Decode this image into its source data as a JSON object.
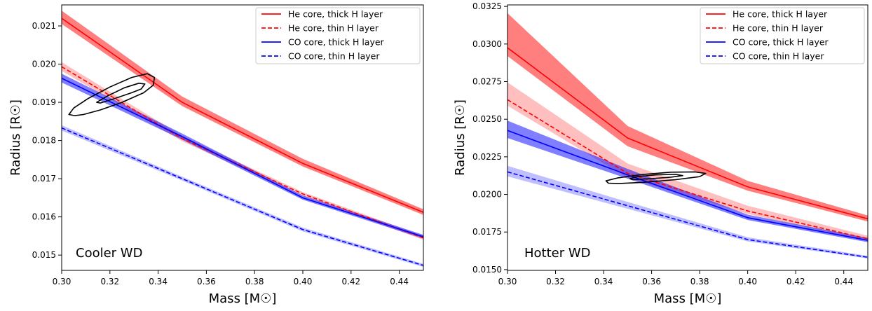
{
  "figure": {
    "background": "#ffffff"
  },
  "chart_data": [
    {
      "type": "line",
      "title": "",
      "annotation": "Cooler WD",
      "xlabel": "Mass [M☉]",
      "ylabel": "Radius [R☉]",
      "xlim": [
        0.3,
        0.45
      ],
      "ylim": [
        0.0146,
        0.02155
      ],
      "xticks": [
        0.3,
        0.32,
        0.34,
        0.36,
        0.38,
        0.4,
        0.42,
        0.44
      ],
      "xtick_labels": [
        "0.30",
        "0.32",
        "0.34",
        "0.36",
        "0.38",
        "0.40",
        "0.42",
        "0.44"
      ],
      "yticks": [
        0.015,
        0.016,
        0.017,
        0.018,
        0.019,
        0.02,
        0.021
      ],
      "ytick_labels": [
        "0.015",
        "0.016",
        "0.017",
        "0.018",
        "0.019",
        "0.020",
        "0.021"
      ],
      "grid": false,
      "legend": "top-right",
      "series": [
        {
          "name": "He core, thick H layer",
          "color": "#ff0000",
          "dash": "solid",
          "x": [
            0.3,
            0.35,
            0.4,
            0.45
          ],
          "y": [
            0.0212,
            0.019,
            0.0174,
            0.01612
          ],
          "band_upper": [
            0.0214,
            0.01915,
            0.01752,
            0.0162
          ],
          "band_lower": [
            0.02105,
            0.0189,
            0.01732,
            0.01605
          ],
          "band_opacity": 0.5
        },
        {
          "name": "He core, thin H layer",
          "color": "#ff0000",
          "dash": "dashed",
          "x": [
            0.3,
            0.35,
            0.4,
            0.45
          ],
          "y": [
            0.01993,
            0.01805,
            0.0166,
            0.01545
          ],
          "band_upper": [
            0.02005,
            0.01812,
            0.01665,
            0.0155
          ],
          "band_lower": [
            0.01982,
            0.01798,
            0.01655,
            0.0154
          ],
          "band_opacity": 0.25
        },
        {
          "name": "CO core, thick H layer",
          "color": "#0000ff",
          "dash": "solid",
          "x": [
            0.3,
            0.35,
            0.4,
            0.45
          ],
          "y": [
            0.01963,
            0.0181,
            0.0165,
            0.01548
          ],
          "band_upper": [
            0.01975,
            0.01818,
            0.01656,
            0.01553
          ],
          "band_lower": [
            0.01952,
            0.01802,
            0.01645,
            0.01543
          ],
          "band_opacity": 0.5
        },
        {
          "name": "CO core, thin H layer",
          "color": "#0000ff",
          "dash": "dashed",
          "x": [
            0.3,
            0.35,
            0.4,
            0.45
          ],
          "y": [
            0.01833,
            0.017,
            0.01567,
            0.01473
          ],
          "band_upper": [
            0.0184,
            0.01705,
            0.01572,
            0.01477
          ],
          "band_lower": [
            0.01826,
            0.01695,
            0.01562,
            0.01469
          ],
          "band_opacity": 0.25
        }
      ],
      "contours": [
        {
          "x": [
            0.3055,
            0.309,
            0.316,
            0.325,
            0.334,
            0.338,
            0.3385,
            0.3355,
            0.329,
            0.32,
            0.311,
            0.305,
            0.303,
            0.3055
          ],
          "y": [
            0.01865,
            0.01868,
            0.0188,
            0.019,
            0.01925,
            0.01945,
            0.01965,
            0.01975,
            0.01965,
            0.0194,
            0.0191,
            0.01885,
            0.01868,
            0.01865
          ]
        },
        {
          "x": [
            0.316,
            0.322,
            0.329,
            0.333,
            0.3345,
            0.332,
            0.326,
            0.3185,
            0.3145,
            0.316
          ],
          "y": [
            0.01898,
            0.0191,
            0.01925,
            0.01935,
            0.01948,
            0.0195,
            0.01938,
            0.01915,
            0.019,
            0.01898
          ]
        }
      ]
    },
    {
      "type": "line",
      "title": "",
      "annotation": "Hotter WD",
      "xlabel": "Mass [M☉]",
      "ylabel": "Radius [R☉]",
      "xlim": [
        0.3,
        0.45
      ],
      "ylim": [
        0.01495,
        0.0326
      ],
      "xticks": [
        0.3,
        0.32,
        0.34,
        0.36,
        0.38,
        0.4,
        0.42,
        0.44
      ],
      "xtick_labels": [
        "0.30",
        "0.32",
        "0.34",
        "0.36",
        "0.38",
        "0.40",
        "0.42",
        "0.44"
      ],
      "yticks": [
        0.015,
        0.0175,
        0.02,
        0.0225,
        0.025,
        0.0275,
        0.03,
        0.0325
      ],
      "ytick_labels": [
        "0.0150",
        "0.0175",
        "0.0200",
        "0.0225",
        "0.0250",
        "0.0275",
        "0.0300",
        "0.0325"
      ],
      "grid": false,
      "legend": "top-right",
      "series": [
        {
          "name": "He core, thick H layer",
          "color": "#ff0000",
          "dash": "solid",
          "x": [
            0.3,
            0.35,
            0.4,
            0.45
          ],
          "y": [
            0.02975,
            0.02375,
            0.0205,
            0.01838
          ],
          "band_upper": [
            0.03205,
            0.02455,
            0.0209,
            0.0186
          ],
          "band_lower": [
            0.0292,
            0.0232,
            0.02025,
            0.0182
          ],
          "band_opacity": 0.5
        },
        {
          "name": "He core, thin H layer",
          "color": "#ff0000",
          "dash": "dashed",
          "x": [
            0.3,
            0.35,
            0.4,
            0.45
          ],
          "y": [
            0.0263,
            0.0214,
            0.0189,
            0.01705
          ],
          "band_upper": [
            0.02745,
            0.02205,
            0.01925,
            0.01725
          ],
          "band_lower": [
            0.0259,
            0.0211,
            0.0187,
            0.01692
          ],
          "band_opacity": 0.25
        },
        {
          "name": "CO core, thick H layer",
          "color": "#0000ff",
          "dash": "solid",
          "x": [
            0.3,
            0.35,
            0.4,
            0.45
          ],
          "y": [
            0.02425,
            0.0213,
            0.01845,
            0.01695
          ],
          "band_upper": [
            0.0249,
            0.0217,
            0.01865,
            0.0171
          ],
          "band_lower": [
            0.02375,
            0.02105,
            0.0183,
            0.01682
          ],
          "band_opacity": 0.5
        },
        {
          "name": "CO core, thin H layer",
          "color": "#0000ff",
          "dash": "dashed",
          "x": [
            0.3,
            0.35,
            0.4,
            0.45
          ],
          "y": [
            0.0215,
            0.01925,
            0.017,
            0.01582
          ],
          "band_upper": [
            0.0219,
            0.0195,
            0.01715,
            0.01592
          ],
          "band_lower": [
            0.0212,
            0.01905,
            0.01688,
            0.01574
          ],
          "band_opacity": 0.25
        }
      ],
      "contours": [
        {
          "x": [
            0.342,
            0.346,
            0.356,
            0.37,
            0.38,
            0.3825,
            0.378,
            0.368,
            0.356,
            0.346,
            0.341,
            0.342
          ],
          "y": [
            0.02075,
            0.02072,
            0.0208,
            0.02098,
            0.02118,
            0.0214,
            0.0215,
            0.02148,
            0.02132,
            0.0211,
            0.0209,
            0.02075
          ]
        },
        {
          "x": [
            0.352,
            0.36,
            0.368,
            0.373,
            0.37,
            0.362,
            0.354,
            0.351,
            0.352
          ],
          "y": [
            0.02098,
            0.02105,
            0.02115,
            0.02125,
            0.02133,
            0.0213,
            0.02118,
            0.02105,
            0.02098
          ]
        }
      ]
    }
  ]
}
